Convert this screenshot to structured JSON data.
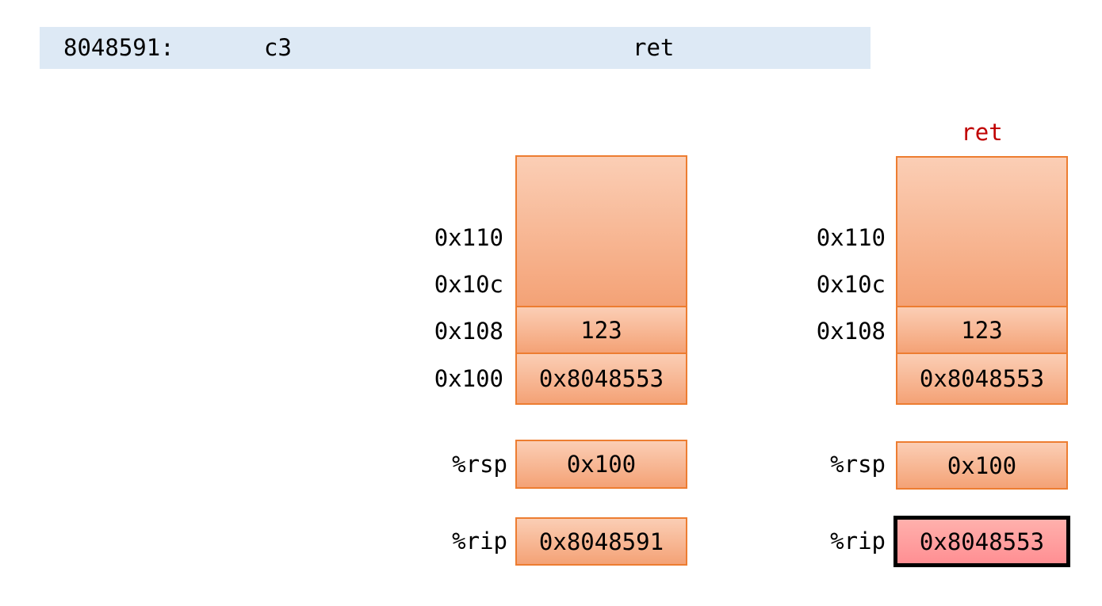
{
  "asm_line": {
    "address": "8048591:",
    "bytes": "c3",
    "mnemonic": "ret"
  },
  "left_diagram": {
    "addresses": [
      "0x110",
      "0x10c",
      "0x108",
      "0x100"
    ],
    "cells": [
      "",
      "123",
      "0x8048553"
    ],
    "registers": [
      {
        "name": "%rsp",
        "value": "0x100"
      },
      {
        "name": "%rip",
        "value": "0x8048591"
      }
    ]
  },
  "right_diagram": {
    "title": "ret",
    "addresses": [
      "0x110",
      "0x10c",
      "0x108"
    ],
    "cells": [
      "",
      "123",
      "0x8048553"
    ],
    "registers": [
      {
        "name": "%rsp",
        "value": "0x100"
      },
      {
        "name": "%rip",
        "value": "0x8048553",
        "highlighted": true
      }
    ]
  },
  "colors": {
    "asm_bar_bg": "#dde9f5",
    "cell_border": "#ed7d31",
    "cell_fill_top": "#fbceb5",
    "cell_fill_bottom": "#f4a276",
    "highlight_fill_top": "#ffb0ac",
    "highlight_fill_bottom": "#ff8f93",
    "highlight_border": "#000000",
    "title_red": "#c00000"
  }
}
